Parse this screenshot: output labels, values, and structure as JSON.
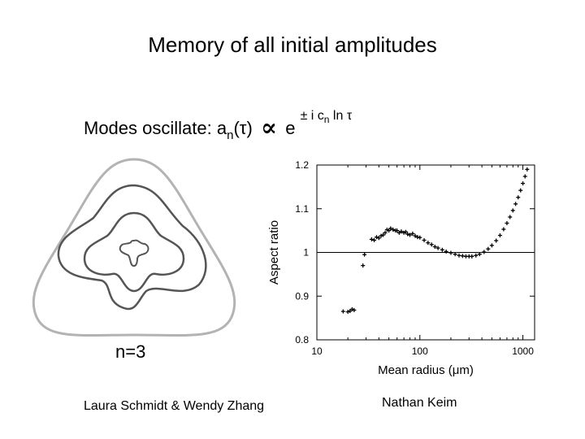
{
  "slide": {
    "title": "Memory of all initial amplitudes",
    "formula": {
      "prefix": "Modes oscillate: a",
      "sub_n": "n",
      "tau_part": "(τ)",
      "proportional": "∝",
      "base": "e",
      "exp_pre": "± i c",
      "exp_sub": "n",
      "exp_post": " ln τ"
    },
    "mode_label": "n=3",
    "credit_left": "Laura Schmidt & Wendy Zhang",
    "credit_right": "Nathan Keim"
  },
  "chart_data": {
    "type": "scatter",
    "xlabel": "Mean radius (μm)",
    "ylabel": "Aspect ratio",
    "xscale": "log",
    "xlim": [
      10,
      1300
    ],
    "ylim": [
      0.8,
      1.2
    ],
    "xticks": [
      10,
      100,
      1000
    ],
    "xtick_labels": [
      "10",
      "100",
      "1000"
    ],
    "yticks": [
      0.8,
      0.9,
      1.0,
      1.1,
      1.2
    ],
    "ytick_labels": [
      "0.8",
      "0.9",
      "1",
      "1.1",
      "1.2"
    ],
    "reference_line": 1.0,
    "grid": false,
    "series": [
      {
        "values": [
          [
            18,
            0.865
          ],
          [
            20,
            0.864
          ],
          [
            21,
            0.866
          ],
          [
            22,
            0.87
          ],
          [
            23,
            0.868
          ],
          [
            28,
            0.97
          ],
          [
            29,
            0.995
          ],
          [
            34,
            1.03
          ],
          [
            36,
            1.028
          ],
          [
            38,
            1.035
          ],
          [
            40,
            1.033
          ],
          [
            42,
            1.038
          ],
          [
            44,
            1.04
          ],
          [
            46,
            1.045
          ],
          [
            48,
            1.052
          ],
          [
            50,
            1.05
          ],
          [
            52,
            1.055
          ],
          [
            55,
            1.052
          ],
          [
            58,
            1.05
          ],
          [
            60,
            1.05
          ],
          [
            63,
            1.045
          ],
          [
            66,
            1.048
          ],
          [
            70,
            1.045
          ],
          [
            73,
            1.047
          ],
          [
            76,
            1.042
          ],
          [
            80,
            1.04
          ],
          [
            85,
            1.043
          ],
          [
            90,
            1.038
          ],
          [
            95,
            1.035
          ],
          [
            100,
            1.034
          ],
          [
            110,
            1.028
          ],
          [
            120,
            1.022
          ],
          [
            130,
            1.018
          ],
          [
            140,
            1.013
          ],
          [
            150,
            1.01
          ],
          [
            165,
            1.006
          ],
          [
            180,
            1.002
          ],
          [
            200,
            0.999
          ],
          [
            220,
            0.996
          ],
          [
            240,
            0.993
          ],
          [
            260,
            0.992
          ],
          [
            280,
            0.991
          ],
          [
            300,
            0.991
          ],
          [
            320,
            0.991
          ],
          [
            350,
            0.993
          ],
          [
            380,
            0.996
          ],
          [
            420,
            1.001
          ],
          [
            460,
            1.008
          ],
          [
            500,
            1.016
          ],
          [
            550,
            1.027
          ],
          [
            600,
            1.039
          ],
          [
            650,
            1.053
          ],
          [
            700,
            1.067
          ],
          [
            750,
            1.081
          ],
          [
            800,
            1.096
          ],
          [
            850,
            1.111
          ],
          [
            900,
            1.126
          ],
          [
            950,
            1.142
          ],
          [
            1000,
            1.158
          ],
          [
            1050,
            1.174
          ],
          [
            1100,
            1.19
          ]
        ]
      }
    ]
  }
}
